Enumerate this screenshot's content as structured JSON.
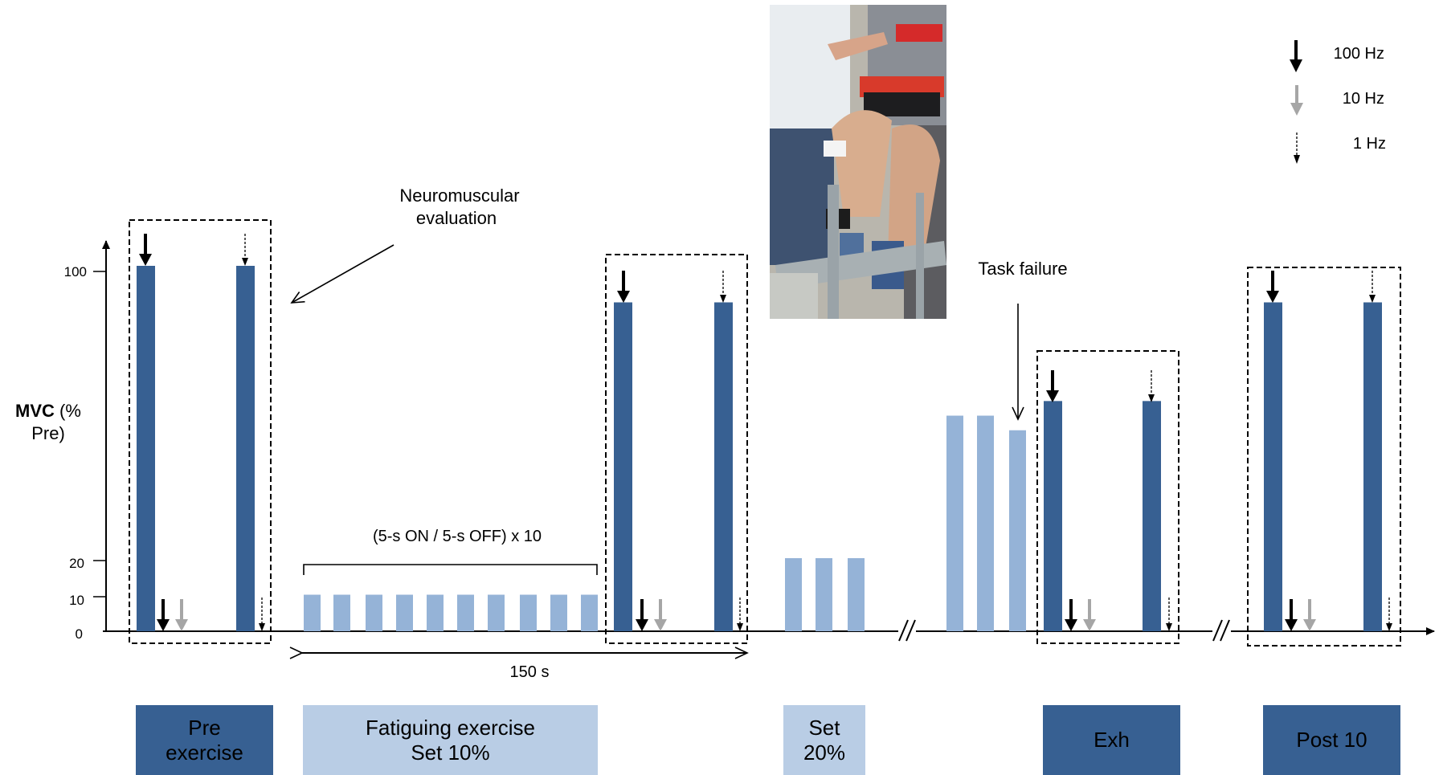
{
  "colors": {
    "dark_bar": "#376092",
    "light_bar": "#95B3D7",
    "phase_dark": "#376092",
    "phase_light": "#B9CDE5",
    "arrow_100hz": "#000000",
    "arrow_10hz": "#A6A6A6",
    "arrow_1hz": "#000000"
  },
  "legend": [
    {
      "label": "100 Hz",
      "icon": "solid-black-arrow-down-icon"
    },
    {
      "label": "10 Hz",
      "icon": "solid-grey-arrow-down-icon"
    },
    {
      "label": "1 Hz",
      "icon": "dashed-black-arrow-down-icon"
    }
  ],
  "y_axis": {
    "label_bold": "MVC",
    "label_rest": " (%",
    "label_line2": "Pre)",
    "ticks": [
      "100",
      "20",
      "10",
      "0"
    ]
  },
  "annotations": {
    "neuromuscular_line1": "Neuromuscular",
    "neuromuscular_line2": "evaluation",
    "protocol": "(5-s ON / 5-s OFF) x 10",
    "duration": "150 s",
    "task_failure": "Task failure"
  },
  "photo": {
    "icon": "knee-extension-setup-photo"
  },
  "bars": {
    "pre_exercise_mvc": [
      100,
      100
    ],
    "post_fatigue_mvc": [
      90,
      90
    ],
    "set_10_contractions": [
      10,
      10,
      10,
      10,
      10,
      10,
      10,
      10,
      10,
      10
    ],
    "set_20_contractions": [
      20,
      20,
      20
    ],
    "final_set_contractions": [
      59,
      59,
      55
    ],
    "exh_mvc": [
      63,
      63
    ],
    "post10_mvc": [
      90,
      90
    ]
  },
  "phases": [
    {
      "label": "Pre\nexercise",
      "style": "dark"
    },
    {
      "label": "Fatiguing exercise\nSet 10%",
      "style": "light"
    },
    {
      "label": "Set\n20%",
      "style": "light"
    },
    {
      "label": "Exh",
      "style": "dark"
    },
    {
      "label": "Post 10",
      "style": "dark"
    }
  ]
}
